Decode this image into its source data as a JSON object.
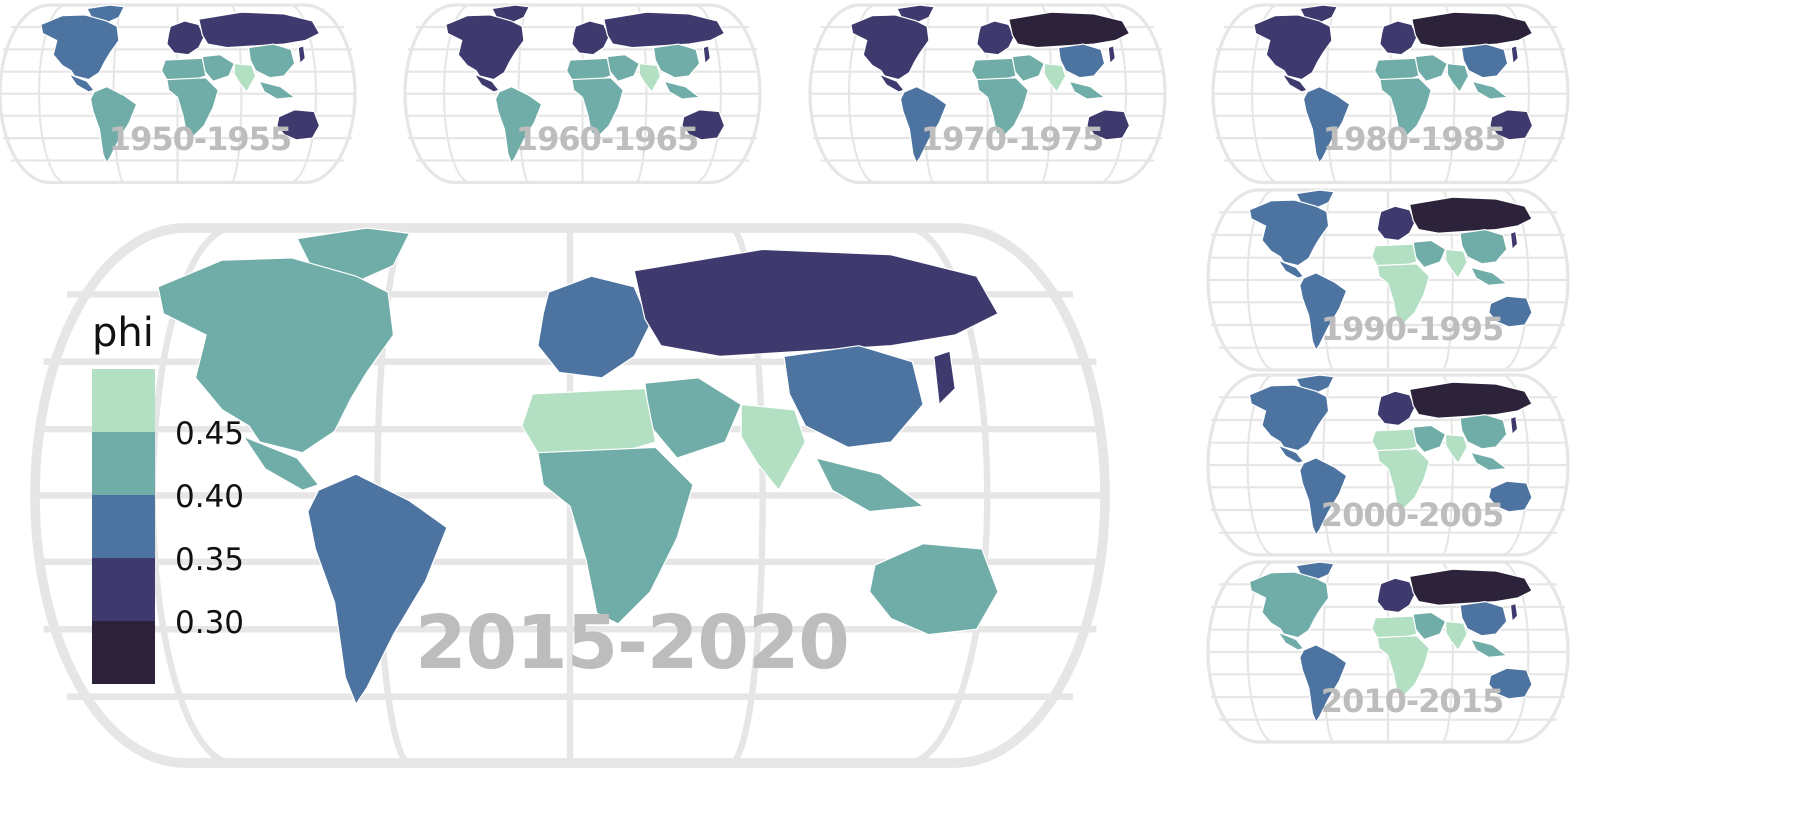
{
  "legend": {
    "title": "phi",
    "colors": [
      "#b3e0c3",
      "#70ada8",
      "#4d73a1",
      "#3e3a6d",
      "#2c2239"
    ],
    "tick_labels": [
      "0.45",
      "0.40",
      "0.35",
      "0.30"
    ]
  },
  "main_map": {
    "period": "2015-2020"
  },
  "small_maps": [
    {
      "period": "1950-1955"
    },
    {
      "period": "1960-1965"
    },
    {
      "period": "1970-1975"
    },
    {
      "period": "1980-1985"
    },
    {
      "period": "1990-1995"
    },
    {
      "period": "2000-2005"
    },
    {
      "period": "2010-2015"
    }
  ],
  "colors": {
    "graticule": "#e6e6e6",
    "border": "#ffffff",
    "label": "#bdbdbd"
  },
  "map_colors": {
    "main": {
      "na": "#70ada8",
      "sa": "#4d73a1",
      "eu": "#4d73a1",
      "ru": "#3e3a6d",
      "cn": "#4d73a1",
      "af": "#70ada8",
      "naf": "#b3e0c3",
      "me": "#70ada8",
      "in": "#b3e0c3",
      "au": "#70ada8",
      "jp": "#3e3a6d",
      "sea": "#70ada8",
      "gl": "#70ada8"
    },
    "s0": {
      "na": "#4d73a1",
      "sa": "#70ada8",
      "eu": "#3e3a6d",
      "ru": "#3e3a6d",
      "cn": "#70ada8",
      "af": "#70ada8",
      "naf": "#70ada8",
      "me": "#70ada8",
      "in": "#b3e0c3",
      "au": "#3e3a6d",
      "jp": "#3e3a6d",
      "sea": "#70ada8",
      "gl": "#4d73a1"
    },
    "s1": {
      "na": "#3e3a6d",
      "sa": "#70ada8",
      "eu": "#3e3a6d",
      "ru": "#3e3a6d",
      "cn": "#70ada8",
      "af": "#70ada8",
      "naf": "#70ada8",
      "me": "#70ada8",
      "in": "#b3e0c3",
      "au": "#3e3a6d",
      "jp": "#3e3a6d",
      "sea": "#70ada8",
      "gl": "#3e3a6d"
    },
    "s2": {
      "na": "#3e3a6d",
      "sa": "#4d73a1",
      "eu": "#3e3a6d",
      "ru": "#2c2239",
      "cn": "#4d73a1",
      "af": "#70ada8",
      "naf": "#70ada8",
      "me": "#70ada8",
      "in": "#b3e0c3",
      "au": "#3e3a6d",
      "jp": "#3e3a6d",
      "sea": "#70ada8",
      "gl": "#3e3a6d"
    },
    "s3": {
      "na": "#3e3a6d",
      "sa": "#4d73a1",
      "eu": "#3e3a6d",
      "ru": "#2c2239",
      "cn": "#4d73a1",
      "af": "#70ada8",
      "naf": "#70ada8",
      "me": "#70ada8",
      "in": "#70ada8",
      "au": "#3e3a6d",
      "jp": "#3e3a6d",
      "sea": "#70ada8",
      "gl": "#3e3a6d"
    },
    "s4": {
      "na": "#4d73a1",
      "sa": "#4d73a1",
      "eu": "#3e3a6d",
      "ru": "#2c2239",
      "cn": "#70ada8",
      "af": "#b3e0c3",
      "naf": "#b3e0c3",
      "me": "#70ada8",
      "in": "#b3e0c3",
      "au": "#4d73a1",
      "jp": "#3e3a6d",
      "sea": "#70ada8",
      "gl": "#4d73a1"
    },
    "s5": {
      "na": "#4d73a1",
      "sa": "#4d73a1",
      "eu": "#3e3a6d",
      "ru": "#2c2239",
      "cn": "#70ada8",
      "af": "#b3e0c3",
      "naf": "#b3e0c3",
      "me": "#70ada8",
      "in": "#b3e0c3",
      "au": "#4d73a1",
      "jp": "#3e3a6d",
      "sea": "#70ada8",
      "gl": "#4d73a1"
    },
    "s6": {
      "na": "#70ada8",
      "sa": "#4d73a1",
      "eu": "#3e3a6d",
      "ru": "#2c2239",
      "cn": "#4d73a1",
      "af": "#b3e0c3",
      "naf": "#b3e0c3",
      "me": "#70ada8",
      "in": "#b3e0c3",
      "au": "#4d73a1",
      "jp": "#3e3a6d",
      "sea": "#70ada8",
      "gl": "#4d73a1"
    }
  }
}
